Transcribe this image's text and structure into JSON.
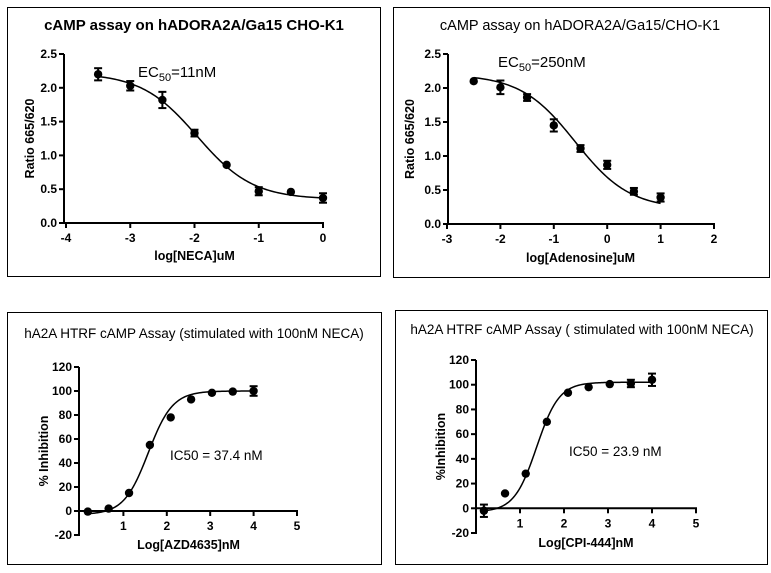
{
  "chart_data": [
    {
      "id": "c1",
      "type": "scatter",
      "title": "cAMP assay on hADORA2A/Ga15 CHO-K1",
      "title_bold": true,
      "xlabel": "log[NECA]uM",
      "ylabel": "Ratio 665/620",
      "xlim": [
        -4,
        0
      ],
      "ylim": [
        0,
        2.5
      ],
      "xticks": [
        -4,
        -3,
        -2,
        -1,
        0
      ],
      "xtick_labels": [
        "-4",
        "-3",
        "-2",
        "-1",
        "0"
      ],
      "yticks": [
        0,
        0.5,
        1.0,
        1.5,
        2.0,
        2.5
      ],
      "ytick_labels": [
        "0.0",
        "0.5",
        "1.0",
        "1.5",
        "2.0",
        "2.5"
      ],
      "annotation": {
        "prefix": "EC",
        "sub": "50",
        "suffix": "=11nM"
      },
      "grid": false,
      "points": [
        {
          "x": -3.5,
          "y": 2.2,
          "err": 0.09
        },
        {
          "x": -3.0,
          "y": 2.03,
          "err": 0.07
        },
        {
          "x": -2.5,
          "y": 1.82,
          "err": 0.12
        },
        {
          "x": -2.0,
          "y": 1.33,
          "err": 0.05
        },
        {
          "x": -1.5,
          "y": 0.86,
          "err": 0.0
        },
        {
          "x": -1.0,
          "y": 0.47,
          "err": 0.06
        },
        {
          "x": -0.5,
          "y": 0.46,
          "err": 0.0
        },
        {
          "x": 0.0,
          "y": 0.37,
          "err": 0.07
        }
      ],
      "fit": {
        "model": "4PL",
        "bottom": 0.35,
        "top": 2.22,
        "logEC50": -1.96,
        "hill": -1.0,
        "x_from": -3.5,
        "x_to": 0.0
      }
    },
    {
      "id": "c2",
      "type": "scatter",
      "title": "cAMP assay on hADORA2A/Ga15/CHO-K1",
      "title_bold": false,
      "xlabel": "log[Adenosine]uM",
      "ylabel": "Ratio 665/620",
      "xlim": [
        -3,
        2
      ],
      "ylim": [
        0,
        2.5
      ],
      "xticks": [
        -3,
        -2,
        -1,
        0,
        1,
        2
      ],
      "xtick_labels": [
        "-3",
        "-2",
        "-1",
        "0",
        "1",
        "2"
      ],
      "yticks": [
        0,
        0.5,
        1.0,
        1.5,
        2.0,
        2.5
      ],
      "ytick_labels": [
        "0.0",
        "0.5",
        "1.0",
        "1.5",
        "2.0",
        "2.5"
      ],
      "annotation": {
        "prefix": "EC",
        "sub": "50",
        "suffix": "=250nM"
      },
      "grid": false,
      "points": [
        {
          "x": -2.5,
          "y": 2.1,
          "err": 0.0
        },
        {
          "x": -2.0,
          "y": 2.01,
          "err": 0.1
        },
        {
          "x": -1.5,
          "y": 1.86,
          "err": 0.05
        },
        {
          "x": -1.0,
          "y": 1.45,
          "err": 0.09
        },
        {
          "x": -0.5,
          "y": 1.11,
          "err": 0.05
        },
        {
          "x": 0.0,
          "y": 0.87,
          "err": 0.06
        },
        {
          "x": 0.5,
          "y": 0.48,
          "err": 0.05
        },
        {
          "x": 1.0,
          "y": 0.39,
          "err": 0.06
        }
      ],
      "fit": {
        "model": "4PL",
        "bottom": 0.22,
        "top": 2.2,
        "logEC50": -0.6,
        "hill": -0.85,
        "x_from": -2.5,
        "x_to": 1.0
      }
    },
    {
      "id": "c3",
      "type": "scatter",
      "title": "hA2A HTRF cAMP Assay (stimulated with 100nM NECA)",
      "title_bold": false,
      "xlabel": "Log[AZD4635]nM",
      "ylabel": "% Inhibition",
      "xlim": [
        0,
        5
      ],
      "ylim": [
        -20,
        120
      ],
      "xticks": [
        1,
        2,
        3,
        4,
        5
      ],
      "xtick_labels": [
        "1",
        "2",
        "3",
        "4",
        "5"
      ],
      "yticks": [
        -20,
        0,
        20,
        40,
        60,
        80,
        100,
        120
      ],
      "ytick_labels": [
        "-20",
        "0",
        "20",
        "40",
        "60",
        "80",
        "100",
        "120"
      ],
      "annotation": {
        "prefix": "IC50 = 37.4 nM",
        "sub": "",
        "suffix": ""
      },
      "grid": false,
      "points": [
        {
          "x": 0.18,
          "y": -0.5,
          "err": 0.0
        },
        {
          "x": 0.66,
          "y": 2,
          "err": 0.0
        },
        {
          "x": 1.13,
          "y": 15,
          "err": 0.0
        },
        {
          "x": 1.61,
          "y": 55,
          "err": 0.0
        },
        {
          "x": 2.09,
          "y": 78,
          "err": 0.0
        },
        {
          "x": 2.56,
          "y": 93,
          "err": 0.0
        },
        {
          "x": 3.04,
          "y": 98.5,
          "err": 0.0
        },
        {
          "x": 3.52,
          "y": 99.5,
          "err": 0.0
        },
        {
          "x": 4.0,
          "y": 100,
          "err": 4
        }
      ],
      "fit": {
        "model": "4PL",
        "bottom": -3,
        "top": 100,
        "logEC50": 1.573,
        "hill": 1.55,
        "x_from": 0.18,
        "x_to": 4.0
      }
    },
    {
      "id": "c4",
      "type": "scatter",
      "title": "hA2A HTRF cAMP Assay ( stimulated with 100nM NECA)",
      "title_bold": false,
      "xlabel": "Log[CPI-444]nM",
      "ylabel": "%Inhibition",
      "xlim": [
        0,
        5
      ],
      "ylim": [
        -20,
        120
      ],
      "xticks": [
        1,
        2,
        3,
        4,
        5
      ],
      "xtick_labels": [
        "1",
        "2",
        "3",
        "4",
        "5"
      ],
      "yticks": [
        -20,
        0,
        20,
        40,
        60,
        80,
        100,
        120
      ],
      "ytick_labels": [
        "-20",
        "0",
        "20",
        "40",
        "60",
        "80",
        "100",
        "120"
      ],
      "annotation": {
        "prefix": "IC50 = 23.9 nM",
        "sub": "",
        "suffix": ""
      },
      "grid": false,
      "points": [
        {
          "x": 0.18,
          "y": -2,
          "err": 5
        },
        {
          "x": 0.66,
          "y": 12,
          "err": 0.0
        },
        {
          "x": 1.13,
          "y": 28,
          "err": 0.0
        },
        {
          "x": 1.61,
          "y": 70,
          "err": 0.0
        },
        {
          "x": 2.09,
          "y": 93.5,
          "err": 0.0
        },
        {
          "x": 2.56,
          "y": 98,
          "err": 0.0
        },
        {
          "x": 3.04,
          "y": 100.5,
          "err": 0.0
        },
        {
          "x": 3.52,
          "y": 101,
          "err": 3
        },
        {
          "x": 4.0,
          "y": 104,
          "err": 5
        }
      ],
      "fit": {
        "model": "4PL",
        "bottom": -3,
        "top": 102,
        "logEC50": 1.378,
        "hill": 1.7,
        "x_from": 0.18,
        "x_to": 4.0
      }
    }
  ]
}
